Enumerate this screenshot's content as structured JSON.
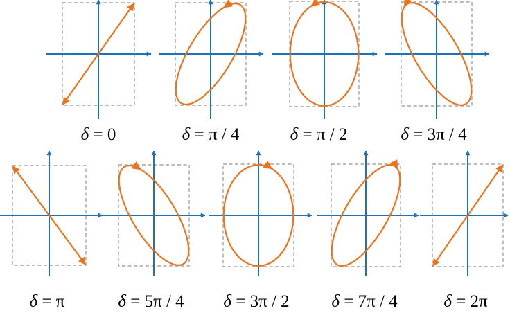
{
  "colors": {
    "axis": "#1f72b8",
    "curve": "#e8741e",
    "box": "#a6a6a6",
    "text": "#000000"
  },
  "panels": [
    {
      "phase_over_pi": 0,
      "label": {
        "var": "δ",
        "eq": " = ",
        "val": "0"
      }
    },
    {
      "phase_over_pi": 0.25,
      "label": {
        "var": "δ",
        "eq": " = ",
        "val": "π / 4"
      }
    },
    {
      "phase_over_pi": 0.5,
      "label": {
        "var": "δ",
        "eq": " = ",
        "val": "π / 2"
      }
    },
    {
      "phase_over_pi": 0.75,
      "label": {
        "var": "δ",
        "eq": " = ",
        "val": "3π / 4"
      }
    },
    {
      "phase_over_pi": 1,
      "label": {
        "var": "δ",
        "eq": " = ",
        "val": "π"
      }
    },
    {
      "phase_over_pi": 1.25,
      "label": {
        "var": "δ",
        "eq": " = ",
        "val": "5π / 4"
      }
    },
    {
      "phase_over_pi": 1.5,
      "label": {
        "var": "δ",
        "eq": " = ",
        "val": "3π / 2"
      }
    },
    {
      "phase_over_pi": 1.75,
      "label": {
        "var": "δ",
        "eq": " = ",
        "val": "7π / 4"
      }
    },
    {
      "phase_over_pi": 2,
      "label": {
        "var": "δ",
        "eq": " = ",
        "val": "2π"
      }
    }
  ]
}
